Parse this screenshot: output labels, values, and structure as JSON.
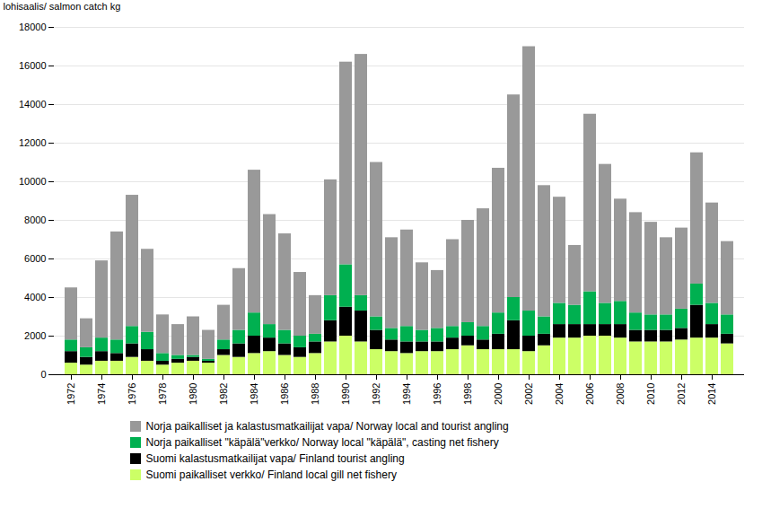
{
  "chart_data": {
    "type": "bar",
    "stacked": true,
    "grid": true,
    "legend": "bottom",
    "ylabel": "lohisaalis/ salmon catch kg",
    "categories": [
      "1972",
      null,
      "1974",
      null,
      "1976",
      null,
      "1978",
      null,
      "1980",
      null,
      "1982",
      null,
      "1984",
      null,
      "1986",
      null,
      "1988",
      null,
      "1990",
      null,
      "1992",
      null,
      "1994",
      null,
      "1996",
      null,
      "1998",
      null,
      "2000",
      null,
      "2002",
      null,
      "2004",
      null,
      "2006",
      null,
      "2008",
      null,
      "2010",
      null,
      "2012",
      null,
      "2014",
      null
    ],
    "ylim": [
      0,
      18000
    ],
    "yticks": [
      0,
      2000,
      4000,
      6000,
      8000,
      10000,
      12000,
      14000,
      16000,
      18000
    ],
    "series": [
      {
        "name": "Suomi paikalliset verkko/ Finland local gill net fishery",
        "color": "#ccff66",
        "values": [
          600,
          500,
          700,
          700,
          900,
          700,
          500,
          600,
          700,
          600,
          1000,
          900,
          1100,
          1200,
          1000,
          900,
          1100,
          1700,
          2000,
          1700,
          1300,
          1200,
          1100,
          1200,
          1200,
          1300,
          1500,
          1300,
          1300,
          1300,
          1200,
          1500,
          1900,
          1900,
          2000,
          2000,
          1900,
          1700,
          1700,
          1700,
          1800,
          1900,
          1900,
          1600
        ]
      },
      {
        "name": "Suomi kalastusmatkailijat vapa/ Finland tourist angling",
        "color": "#000000",
        "values": [
          600,
          400,
          500,
          400,
          700,
          600,
          200,
          200,
          200,
          100,
          300,
          700,
          900,
          700,
          600,
          500,
          600,
          1100,
          1500,
          1600,
          1000,
          600,
          600,
          500,
          500,
          600,
          500,
          500,
          800,
          1500,
          800,
          600,
          700,
          700,
          600,
          600,
          700,
          600,
          600,
          600,
          600,
          1700,
          700,
          500
        ]
      },
      {
        "name": "Norja paikalliset \"käpälä\"verkko/ Norway local \"käpälä\", casting net  fishery",
        "color": "#00b050",
        "values": [
          600,
          500,
          700,
          700,
          900,
          900,
          400,
          200,
          100,
          100,
          500,
          700,
          1200,
          700,
          700,
          600,
          400,
          1300,
          2200,
          800,
          700,
          600,
          800,
          600,
          700,
          600,
          700,
          700,
          1100,
          1200,
          1300,
          900,
          1100,
          1000,
          1700,
          1100,
          1200,
          900,
          800,
          800,
          1000,
          1100,
          1100,
          1000
        ]
      },
      {
        "name": "Norja paikalliset ja kalastusmatkailijat vapa/ Norway local and tourist angling",
        "color": "#999999",
        "values": [
          2700,
          1500,
          4000,
          5600,
          6800,
          4300,
          2000,
          1600,
          2000,
          1500,
          1800,
          3200,
          7400,
          5700,
          5000,
          3300,
          2000,
          6000,
          10500,
          12500,
          8000,
          4700,
          5000,
          3500,
          3000,
          4500,
          5300,
          6100,
          7500,
          10500,
          13700,
          6800,
          5500,
          3100,
          9200,
          7200,
          5300,
          5200,
          4800,
          4000,
          4200,
          6800,
          5200,
          3800
        ]
      }
    ]
  }
}
